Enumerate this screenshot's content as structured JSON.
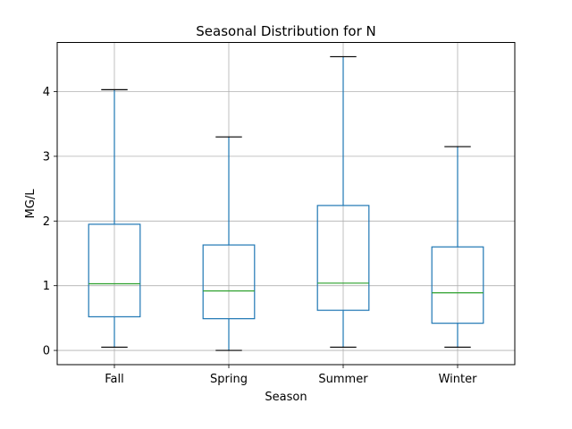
{
  "chart_data": {
    "type": "box",
    "title": "Seasonal Distribution for N",
    "xlabel": "Season",
    "ylabel": "MG/L",
    "categories": [
      "Fall",
      "Spring",
      "Summer",
      "Winter"
    ],
    "boxes": [
      {
        "category": "Fall",
        "whisker_low": 0.05,
        "q1": 0.52,
        "median": 1.03,
        "q3": 1.95,
        "whisker_high": 4.03
      },
      {
        "category": "Spring",
        "whisker_low": 0.0,
        "q1": 0.49,
        "median": 0.92,
        "q3": 1.63,
        "whisker_high": 3.3
      },
      {
        "category": "Summer",
        "whisker_low": 0.05,
        "q1": 0.62,
        "median": 1.04,
        "q3": 2.24,
        "whisker_high": 4.54
      },
      {
        "category": "Winter",
        "whisker_low": 0.05,
        "q1": 0.42,
        "median": 0.89,
        "q3": 1.6,
        "whisker_high": 3.15
      }
    ],
    "yticks": [
      0,
      1,
      2,
      3,
      4
    ],
    "ylim": [
      -0.22,
      4.76
    ],
    "grid": true,
    "colors": {
      "box": "#1f77b4",
      "median": "#2ca02c",
      "caps": "#000000",
      "grid": "#b0b0b0"
    }
  }
}
